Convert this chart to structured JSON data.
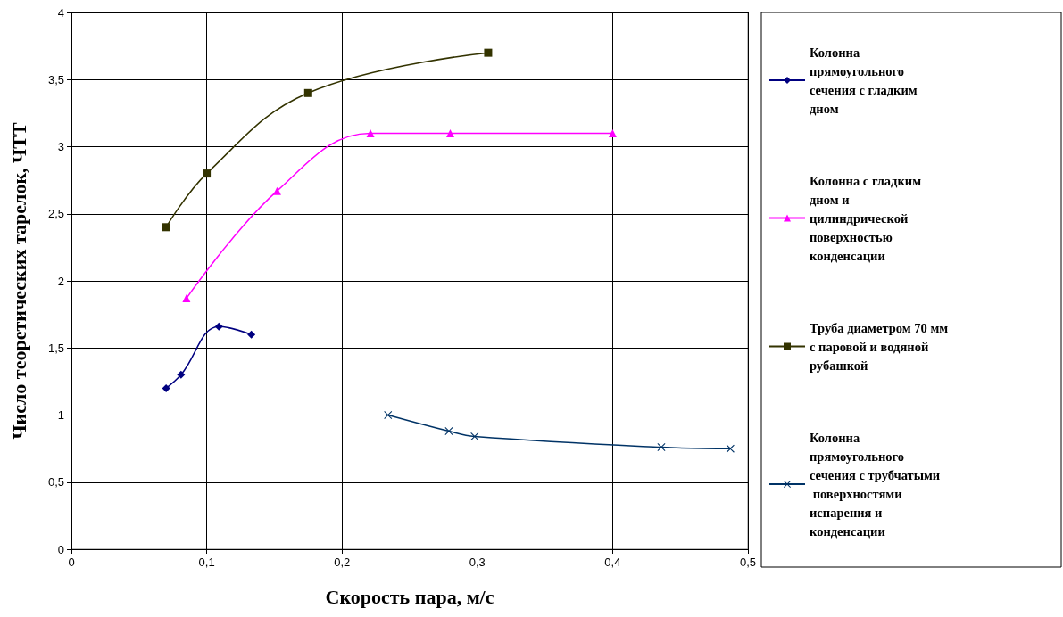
{
  "chart_data": {
    "type": "line",
    "xlabel": "Скорость пара, м/с",
    "ylabel": "Число теоретических тарелок, ЧТТ",
    "xlim": [
      0,
      0.5
    ],
    "xticks": [
      0,
      {
        "value": 0.1,
        "label": "0,1"
      },
      {
        "value": 0.2,
        "label": "0,2"
      },
      {
        "value": 0.3,
        "label": "0,3"
      },
      {
        "value": 0.4,
        "label": "0,4"
      },
      {
        "value": 0.5,
        "label": "0,5"
      }
    ],
    "ylim": [
      0,
      4
    ],
    "yticks": [
      0,
      {
        "value": 0.5,
        "label": "0,5"
      },
      1,
      {
        "value": 1.5,
        "label": "1,5"
      },
      2,
      {
        "value": 2.5,
        "label": "2,5"
      },
      3,
      {
        "value": 3.5,
        "label": "3,5"
      },
      4
    ],
    "grid": true,
    "legend": "right",
    "line_style": "solid",
    "series": [
      {
        "name": "Колонна прямоугольного сечения с гладким дном",
        "color": "#000080",
        "marker": "diamond",
        "x": [
          0.07,
          0.081,
          0.109,
          0.133
        ],
        "values": [
          1.2,
          1.3,
          1.66,
          1.6
        ]
      },
      {
        "name": "Колонна с гладким дном и цилиндрической поверхностью  конденсации",
        "color": "#ff00ff",
        "marker": "triangle",
        "x": [
          0.085,
          0.152,
          0.221,
          0.28,
          0.4
        ],
        "values": [
          1.87,
          2.67,
          3.1,
          3.1,
          3.1
        ]
      },
      {
        "name": "Труба диаметром 70 мм с паровой и водяной  рубашкой",
        "color": "#333300",
        "marker": "square",
        "x": [
          0.07,
          0.1,
          0.175,
          0.308
        ],
        "values": [
          2.4,
          2.8,
          3.4,
          3.7
        ]
      },
      {
        "name": "Колонна прямоугольного сечения с трубчатыми поверхностями испарения и конденсации",
        "color": "#003366",
        "marker": "cross",
        "x": [
          0.234,
          0.279,
          0.298,
          0.436,
          0.487
        ],
        "values": [
          1.0,
          0.88,
          0.84,
          0.76,
          0.75
        ]
      }
    ]
  }
}
